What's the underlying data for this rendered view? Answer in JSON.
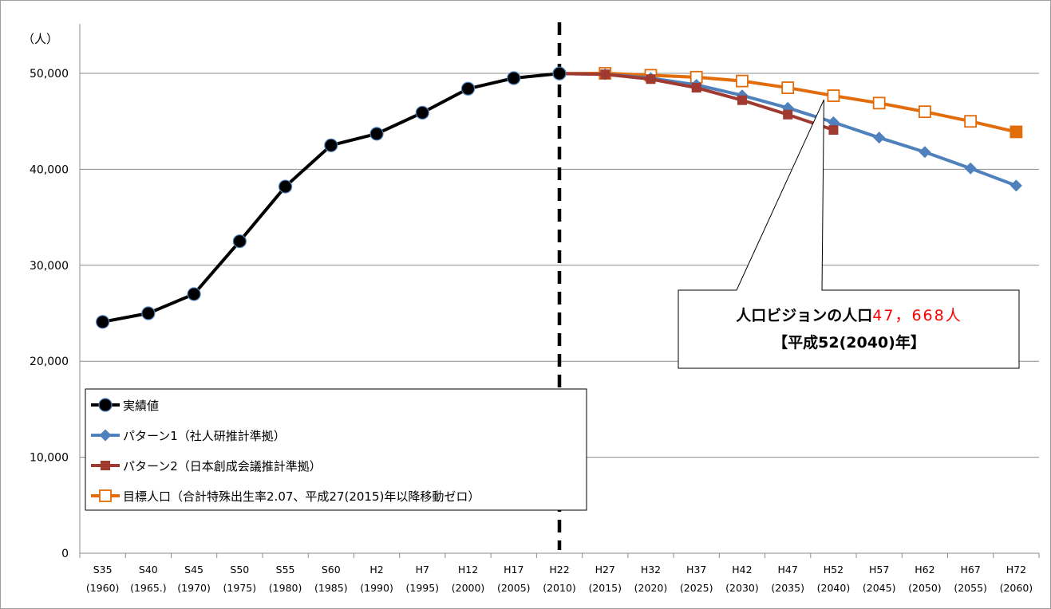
{
  "chart_data": {
    "type": "line",
    "y_unit_label": "（人）",
    "ylim": [
      0,
      50000
    ],
    "yticks": [
      0,
      10000,
      20000,
      30000,
      40000,
      50000
    ],
    "ytick_labels": [
      "0",
      "10,000",
      "20,000",
      "30,000",
      "40,000",
      "50,000"
    ],
    "grid": true,
    "categories": [
      [
        "S35",
        "(1960)"
      ],
      [
        "S40",
        "(1965.)"
      ],
      [
        "S45",
        "(1970)"
      ],
      [
        "S50",
        "(1975)"
      ],
      [
        "S55",
        "(1980)"
      ],
      [
        "S60",
        "(1985)"
      ],
      [
        "H2",
        "(1990)"
      ],
      [
        "H7",
        "(1995)"
      ],
      [
        "H12",
        "(2000)"
      ],
      [
        "H17",
        "(2005)"
      ],
      [
        "H22",
        "(2010)"
      ],
      [
        "H27",
        "(2015)"
      ],
      [
        "H32",
        "(2020)"
      ],
      [
        "H37",
        "(2025)"
      ],
      [
        "H42",
        "(2030)"
      ],
      [
        "H47",
        "(2035)"
      ],
      [
        "H52",
        "(2040)"
      ],
      [
        "H57",
        "(2045)"
      ],
      [
        "H62",
        "(2050)"
      ],
      [
        "H67",
        "(2055)"
      ],
      [
        "H72",
        "(2060)"
      ]
    ],
    "divider_after_category": "H22",
    "legend_position": "bottom-left",
    "series": [
      {
        "name": "実績値",
        "color": "#000000",
        "marker": "circle",
        "values": [
          24100,
          25000,
          27000,
          32500,
          38200,
          42500,
          43700,
          45900,
          48400,
          49500,
          49983,
          null,
          null,
          null,
          null,
          null,
          null,
          null,
          null,
          null,
          null
        ]
      },
      {
        "name": "パターン1（社人研推計準拠）",
        "color": "#4f81bd",
        "marker": "diamond",
        "values": [
          null,
          null,
          null,
          null,
          null,
          null,
          null,
          null,
          null,
          null,
          49983,
          49900,
          49500,
          48800,
          47700,
          46400,
          44900,
          43300,
          41800,
          40100,
          38300
        ]
      },
      {
        "name": "パターン2（日本創成会議推計準拠）",
        "color": "#a0392f",
        "marker": "square",
        "values": [
          null,
          null,
          null,
          null,
          null,
          null,
          null,
          null,
          null,
          null,
          49983,
          49900,
          49400,
          48500,
          47200,
          45700,
          44100,
          null,
          null,
          null,
          null
        ]
      },
      {
        "name": "目標人口（合計特殊出生率2.07、平成27(2015)年以降移動ゼロ）",
        "color": "#e36c0a",
        "marker": "open-square",
        "values": [
          null,
          null,
          null,
          null,
          null,
          null,
          null,
          null,
          null,
          null,
          49983,
          50000,
          49800,
          49600,
          49200,
          48500,
          47668,
          46900,
          46000,
          45000,
          43900
        ]
      }
    ],
    "annotation": {
      "text_prefix": "人口ビジョンの人口",
      "highlight": "47，668人",
      "line2": "【平成52(2040)年】",
      "points_to_category": "H52",
      "points_to_value": 47668
    }
  }
}
